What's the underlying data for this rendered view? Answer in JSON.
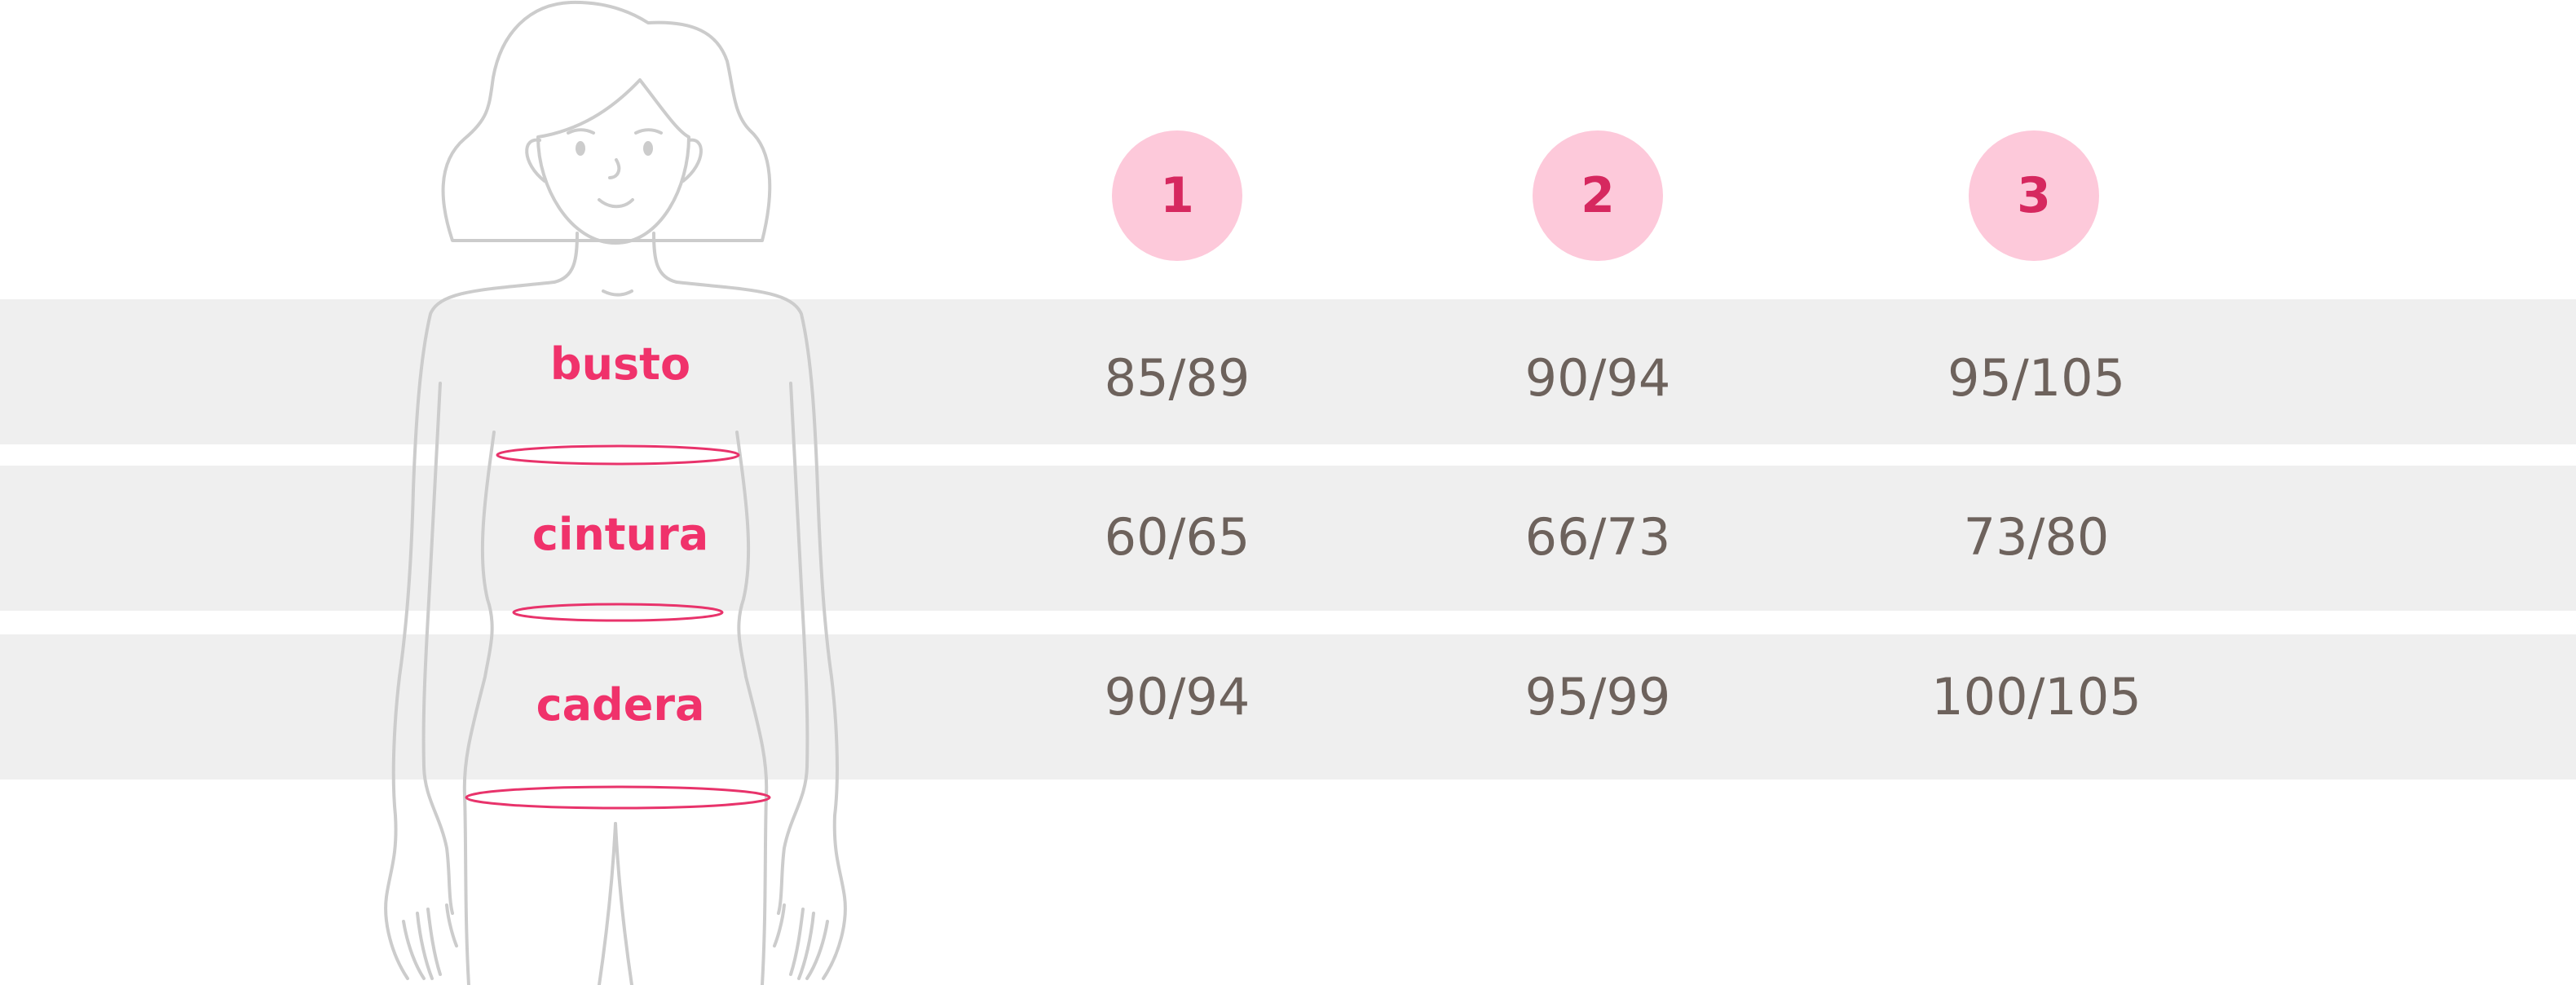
{
  "sizes": [
    "1",
    "2",
    "3"
  ],
  "rows": [
    {
      "label": "busto",
      "values": [
        "85/89",
        "90/94",
        "95/105"
      ]
    },
    {
      "label": "cintura",
      "values": [
        "60/65",
        "66/73",
        "73/80"
      ]
    },
    {
      "label": "cadera",
      "values": [
        "90/94",
        "95/99",
        "100/105"
      ]
    }
  ],
  "colors": {
    "band": "#efefef",
    "badge_bg": "#fdc9da",
    "badge_text": "#d6285f",
    "label_text": "#f0326b",
    "value_text": "#6d625c",
    "outline": "#cccccc",
    "measure_ring": "#e8336b"
  },
  "icons": [
    "woman-body-outline-icon",
    "bust-measure-ring-icon",
    "waist-measure-ring-icon",
    "hip-measure-ring-icon"
  ]
}
